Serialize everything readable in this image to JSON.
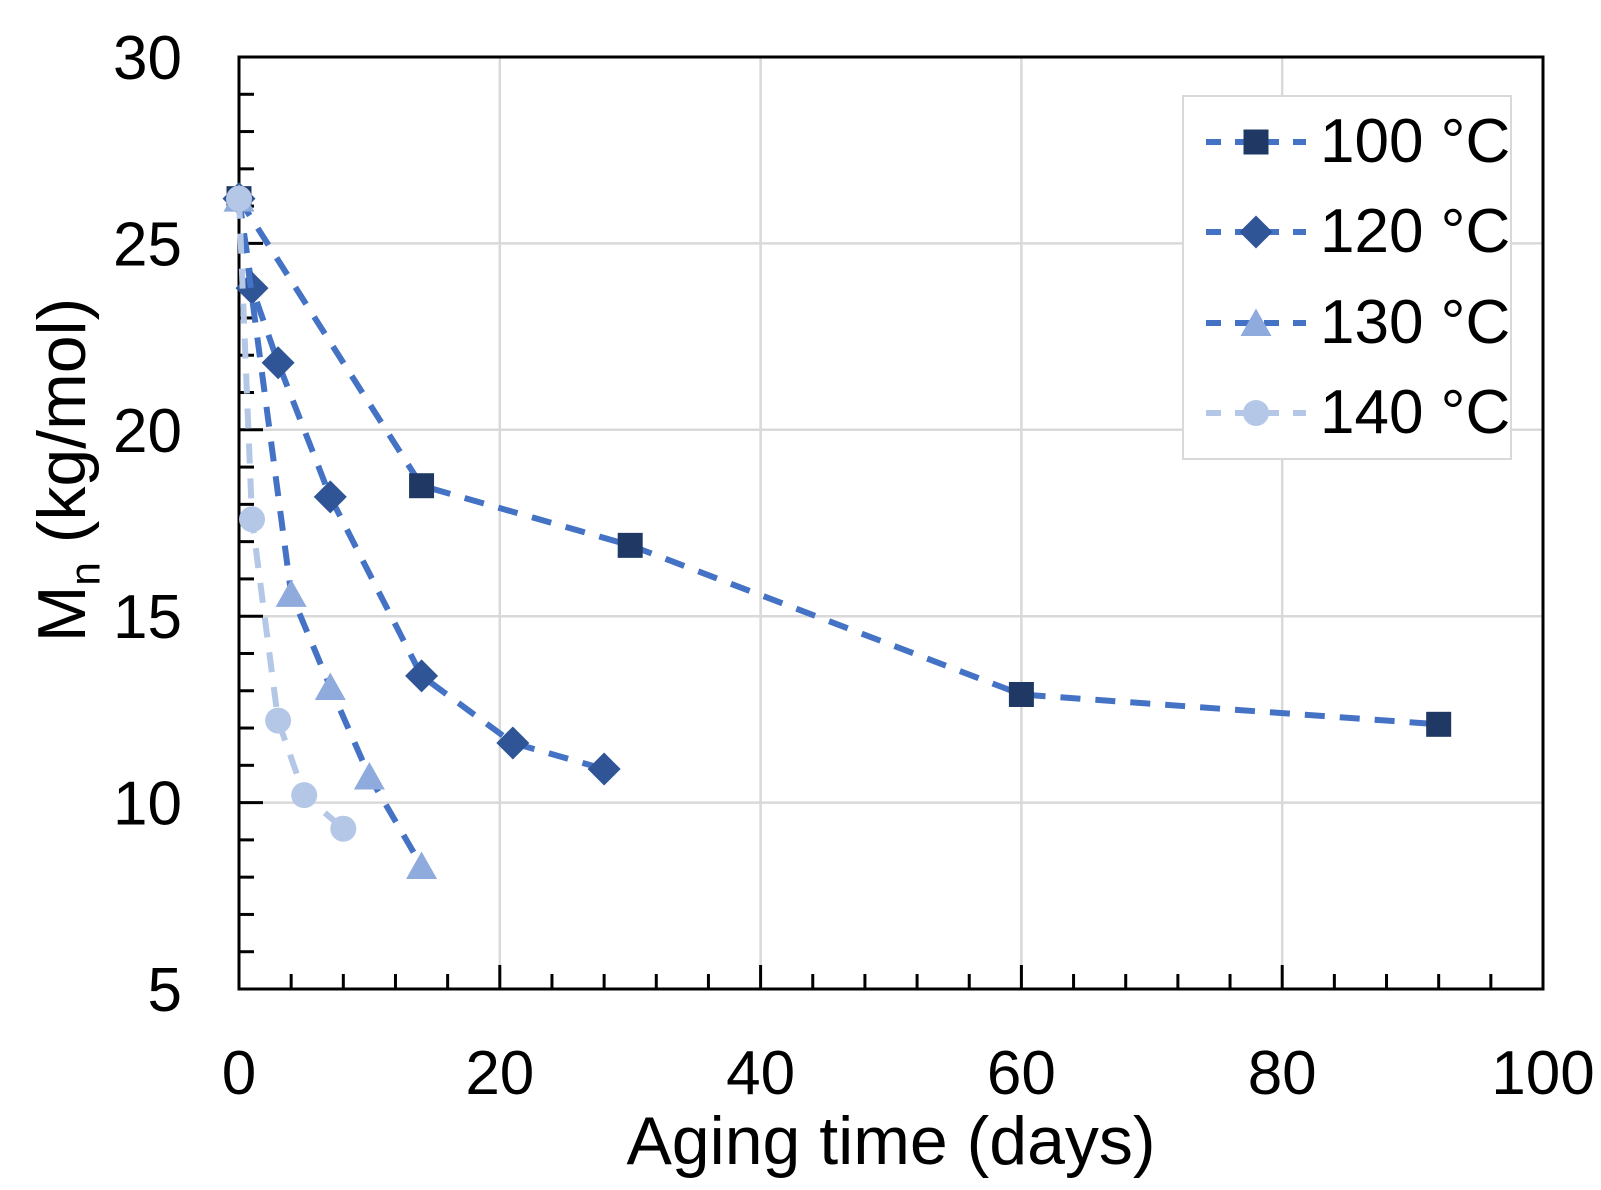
{
  "figure": {
    "background": "#FFFFFF"
  },
  "chart_data": {
    "type": "line",
    "title": "",
    "xlabel": "Aging time (days)",
    "ylabel": {
      "base": "M",
      "sub": "n",
      "rest": " (kg/mol)"
    },
    "xlim": [
      0,
      100
    ],
    "ylim": [
      5,
      30
    ],
    "x_major_ticks": [
      0,
      20,
      40,
      60,
      80,
      100
    ],
    "y_major_ticks": [
      5,
      10,
      15,
      20,
      25,
      30
    ],
    "x_minor_step": 4,
    "y_minor_step": 1,
    "tick_style": "inward",
    "grid": {
      "x_values": [
        20,
        40,
        60,
        80
      ],
      "y_values": [
        10,
        15,
        20,
        25
      ],
      "color": "#D9D9D9"
    },
    "axis_color": "#000000",
    "line_dash_color": "#4472C4",
    "legend": {
      "position": "top-right",
      "border_color": "#D9D9D9",
      "background": "#FFFFFF"
    },
    "series": [
      {
        "name": "100 °C",
        "marker": "square",
        "marker_color": "#1F3864",
        "line_color": "#4472C4",
        "points": [
          [
            0,
            26.2
          ],
          [
            14,
            18.5
          ],
          [
            30,
            16.9
          ],
          [
            60,
            12.9
          ],
          [
            92,
            12.1
          ]
        ]
      },
      {
        "name": "120 °C",
        "marker": "diamond",
        "marker_color": "#2F5597",
        "line_color": "#4472C4",
        "points": [
          [
            0,
            26.2
          ],
          [
            1,
            23.8
          ],
          [
            3,
            21.8
          ],
          [
            7,
            18.2
          ],
          [
            14,
            13.4
          ],
          [
            21,
            11.6
          ],
          [
            28,
            10.9
          ]
        ]
      },
      {
        "name": "130 °C",
        "marker": "triangle",
        "marker_color": "#8FAADC",
        "line_color": "#4472C4",
        "points": [
          [
            0,
            26.2
          ],
          [
            4,
            15.6
          ],
          [
            7,
            13.1
          ],
          [
            10,
            10.7
          ],
          [
            14,
            8.3
          ]
        ]
      },
      {
        "name": "140 °C",
        "marker": "circle",
        "marker_color": "#B4C7E7",
        "line_color": "#B4C7E7",
        "points": [
          [
            0,
            26.2
          ],
          [
            1,
            17.6
          ],
          [
            3,
            12.2
          ],
          [
            5,
            10.2
          ],
          [
            8,
            9.3
          ]
        ]
      }
    ]
  }
}
